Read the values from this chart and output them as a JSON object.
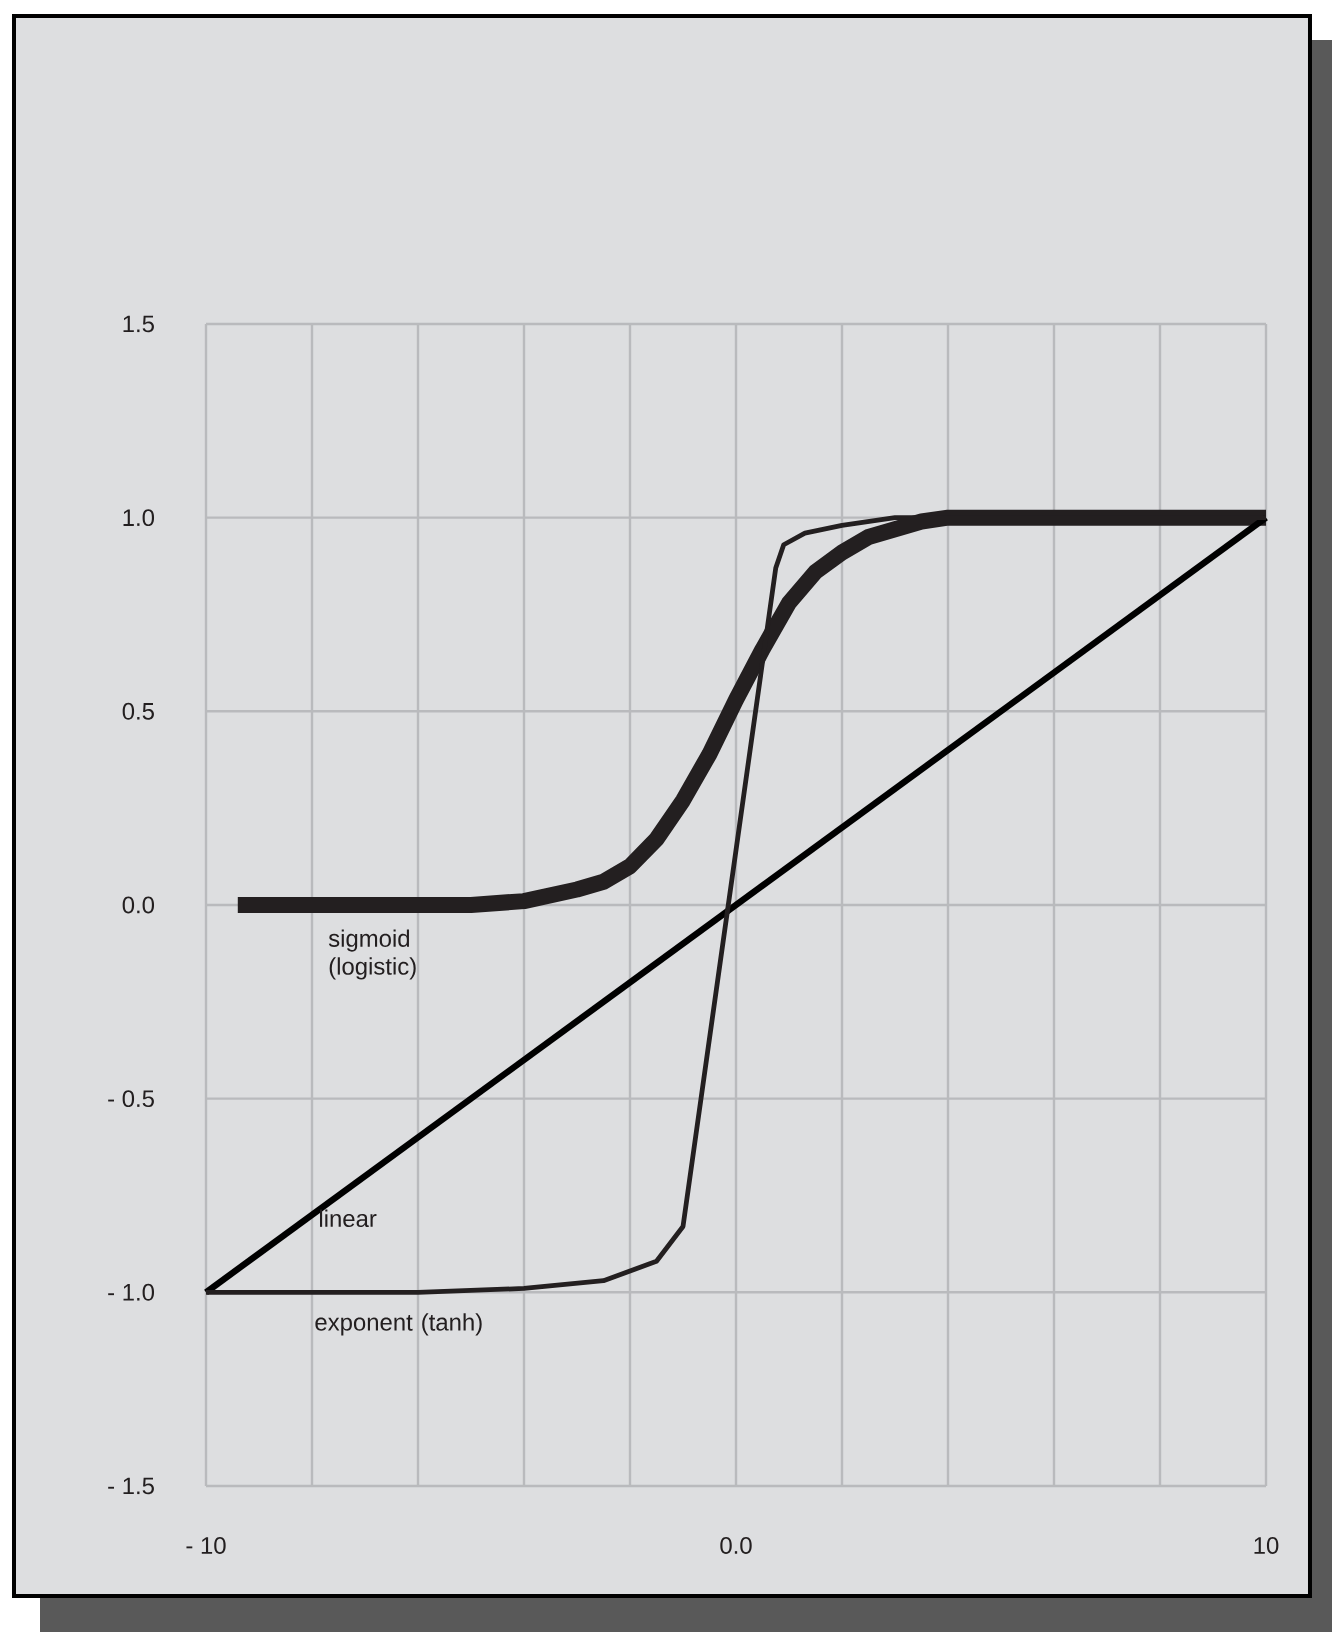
{
  "chart_data": {
    "type": "line",
    "xlim": [
      -10,
      10
    ],
    "ylim": [
      -1.5,
      1.5
    ],
    "xticks": [
      {
        "value": -10,
        "label": "- 10"
      },
      {
        "value": -8,
        "label": null
      },
      {
        "value": -6,
        "label": null
      },
      {
        "value": -4,
        "label": null
      },
      {
        "value": -2,
        "label": null
      },
      {
        "value": 0,
        "label": "0.0"
      },
      {
        "value": 2,
        "label": null
      },
      {
        "value": 4,
        "label": null
      },
      {
        "value": 6,
        "label": null
      },
      {
        "value": 8,
        "label": null
      },
      {
        "value": 10,
        "label": "10"
      }
    ],
    "yticks": [
      {
        "value": -1.5,
        "label": "- 1.5"
      },
      {
        "value": -1,
        "label": "- 1.0"
      },
      {
        "value": -0.5,
        "label": "- 0.5"
      },
      {
        "value": 0,
        "label": "0.0"
      },
      {
        "value": 0.5,
        "label": "0.5"
      },
      {
        "value": 1,
        "label": "1.0"
      },
      {
        "value": 1.5,
        "label": "1.5"
      }
    ],
    "grid": true,
    "marker": "none",
    "line_style": "solid",
    "series": [
      {
        "name": "sigmoid (logistic)",
        "color": "#231f20",
        "x": [
          -9.4,
          -5,
          -4,
          -3,
          -2.5,
          -2,
          -1.5,
          -1,
          -0.5,
          0,
          0.5,
          1,
          1.5,
          2,
          2.5,
          3,
          3.5,
          4,
          10
        ],
        "values": [
          0,
          0,
          0.01,
          0.04,
          0.06,
          0.1,
          0.17,
          0.27,
          0.39,
          0.53,
          0.66,
          0.78,
          0.86,
          0.91,
          0.95,
          0.97,
          0.99,
          1.0,
          1.0
        ]
      },
      {
        "name": "linear",
        "color": "#000000",
        "x": [
          -10,
          10
        ],
        "values": [
          -1,
          1
        ]
      },
      {
        "name": "exponent (tanh)",
        "color": "#231f20",
        "x": [
          -10,
          -6,
          -4,
          -2.5,
          -1.5,
          -1,
          0.75,
          0.9,
          1.3,
          2,
          3,
          10
        ],
        "values": [
          -1,
          -1,
          -0.99,
          -0.97,
          -0.92,
          -0.83,
          0.87,
          0.93,
          0.96,
          0.98,
          1.0,
          1.0
        ]
      }
    ]
  }
}
